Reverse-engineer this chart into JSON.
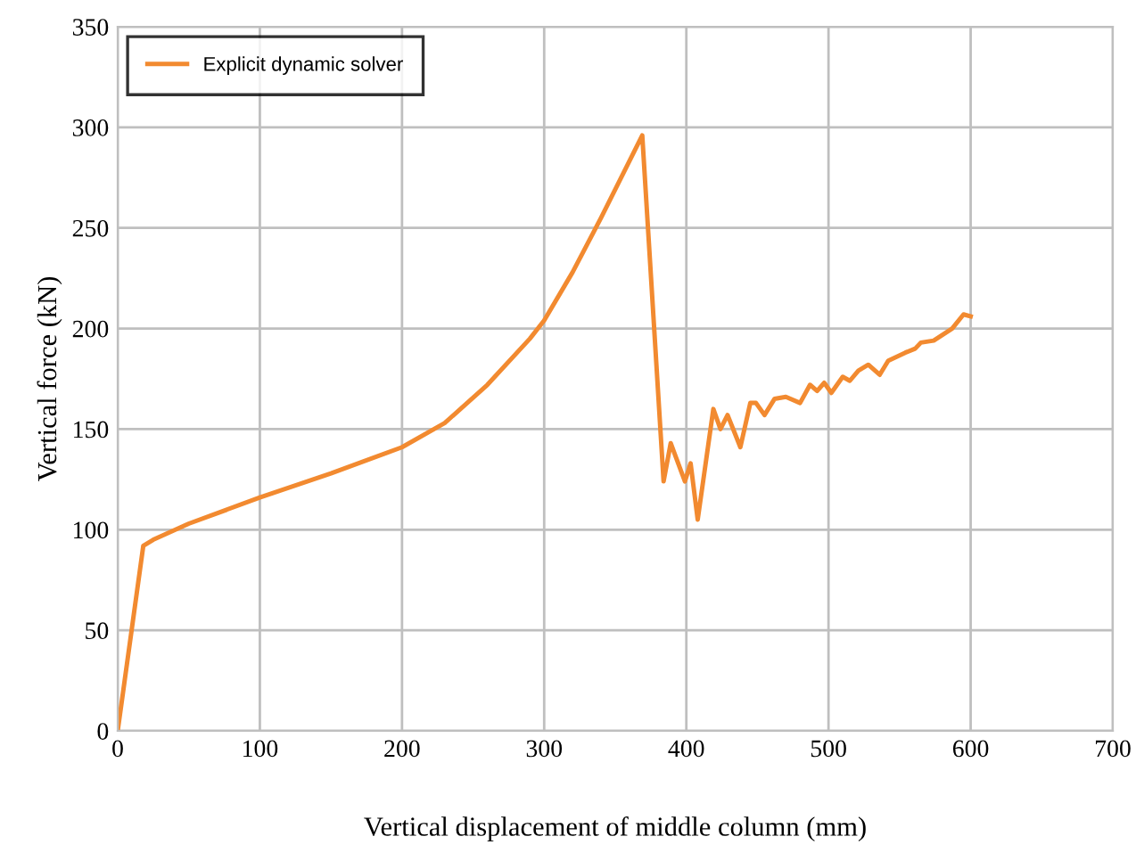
{
  "chart_data": {
    "type": "line",
    "xlabel": "Vertical displacement of middle column (mm)",
    "ylabel": "Vertical force (kN)",
    "xlim": [
      0,
      700
    ],
    "ylim": [
      0,
      350
    ],
    "xticks": [
      0,
      100,
      200,
      300,
      400,
      500,
      600,
      700
    ],
    "yticks": [
      0,
      50,
      100,
      150,
      200,
      250,
      300,
      350
    ],
    "grid": true,
    "legend": "top left",
    "marker": "none",
    "line_style": "solid",
    "series": [
      {
        "name": "Explicit dynamic solver",
        "color": "#f28a30",
        "x": [
          0,
          18,
          25,
          50,
          100,
          150,
          200,
          230,
          260,
          290,
          300,
          320,
          340,
          369,
          384,
          389,
          399,
          403,
          408,
          419,
          424,
          429,
          438,
          445,
          449,
          455,
          462,
          470,
          480,
          487,
          492,
          497,
          502,
          510,
          515,
          521,
          528,
          536,
          542,
          554,
          561,
          565,
          574,
          587,
          595,
          600
        ],
        "values": [
          0,
          92,
          95,
          103,
          116,
          128,
          141,
          153,
          172,
          195,
          204,
          228,
          255,
          296,
          124,
          143,
          124,
          133,
          105,
          160,
          150,
          157,
          141,
          163,
          163,
          157,
          165,
          166,
          163,
          172,
          169,
          173,
          168,
          176,
          174,
          179,
          182,
          177,
          184,
          188,
          190,
          193,
          194,
          200,
          207,
          206
        ]
      }
    ]
  }
}
